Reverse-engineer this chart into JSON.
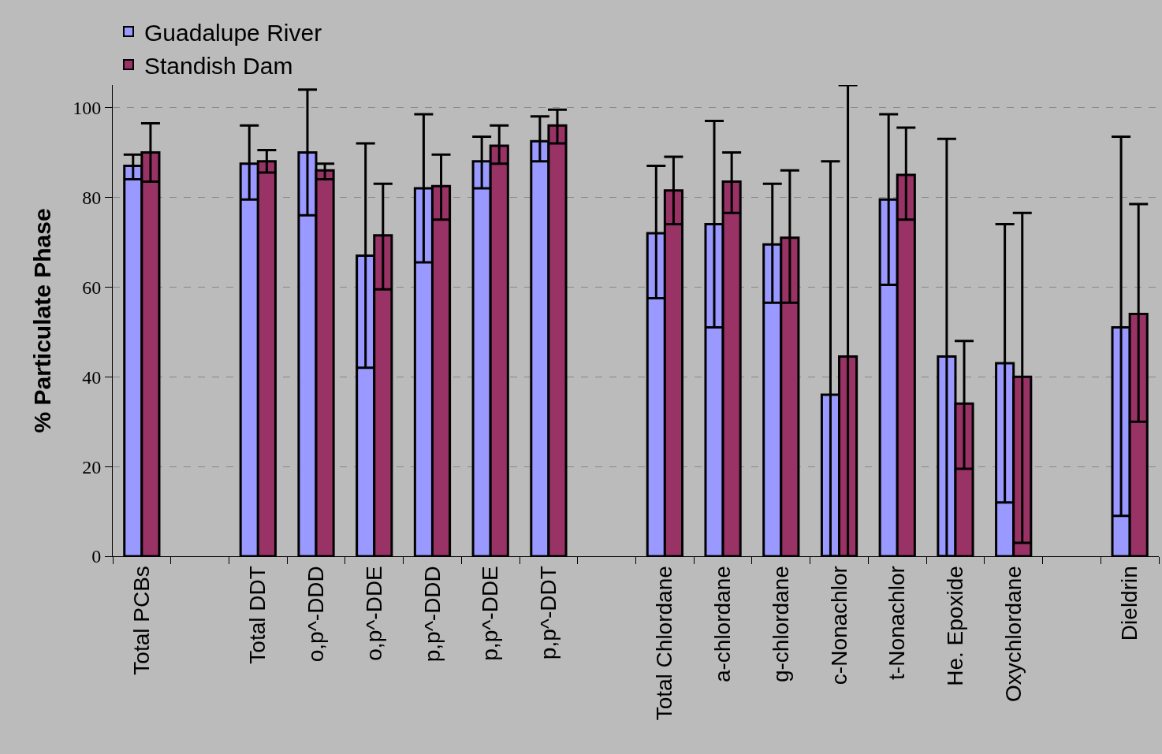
{
  "chart_data": {
    "type": "bar",
    "ylabel": "% Particulate Phase",
    "categories": [
      "Total PCBs",
      null,
      "Total DDT",
      "o,p^-DDD",
      "o,p^-DDE",
      "p,p^-DDD",
      "p,p^-DDE",
      "p,p^-DDT",
      null,
      "Total Chlordane",
      "a-chlordane",
      "g-chlordane",
      "c-Nonachlor",
      "t-Nonachlor",
      "He. Epoxide",
      "Oxychlordane",
      null,
      "Dieldrin"
    ],
    "series": [
      {
        "name": "Guadalupe River",
        "color": "#9999ff",
        "values": [
          87,
          null,
          87.5,
          90,
          67,
          82,
          88,
          92.5,
          null,
          72,
          74,
          69.5,
          36,
          79.5,
          44.5,
          43,
          null,
          51
        ],
        "errors": [
          [
            84,
            89.5
          ],
          null,
          [
            79.5,
            96
          ],
          [
            76,
            104
          ],
          [
            42,
            92
          ],
          [
            65.5,
            98.5
          ],
          [
            82,
            93.5
          ],
          [
            88,
            98
          ],
          null,
          [
            57.5,
            87
          ],
          [
            51,
            97
          ],
          [
            56.5,
            83
          ],
          [
            0,
            88
          ],
          [
            60.5,
            98.5
          ],
          [
            0,
            93
          ],
          [
            12,
            74
          ],
          null,
          [
            9,
            93.5
          ]
        ]
      },
      {
        "name": "Standish Dam",
        "color": "#993366",
        "values": [
          90,
          null,
          88,
          86,
          71.5,
          82.5,
          91.5,
          96,
          null,
          81.5,
          83.5,
          71,
          44.5,
          85,
          34,
          40,
          null,
          54
        ],
        "errors": [
          [
            83.5,
            96.5
          ],
          null,
          [
            85.5,
            90.5
          ],
          [
            84,
            87.5
          ],
          [
            59.5,
            83
          ],
          [
            75,
            89.5
          ],
          [
            87.5,
            96
          ],
          [
            92,
            99.5
          ],
          null,
          [
            74,
            89
          ],
          [
            76.5,
            90
          ],
          [
            56.5,
            86
          ],
          [
            0,
            105
          ],
          [
            75,
            95.5
          ],
          [
            19.5,
            48
          ],
          [
            3,
            76.5
          ],
          null,
          [
            30,
            78.5
          ]
        ]
      }
    ],
    "ylim": [
      0,
      105
    ],
    "yticks": [
      0,
      20,
      40,
      60,
      80,
      100
    ],
    "grid": "y",
    "legend": "top left"
  }
}
